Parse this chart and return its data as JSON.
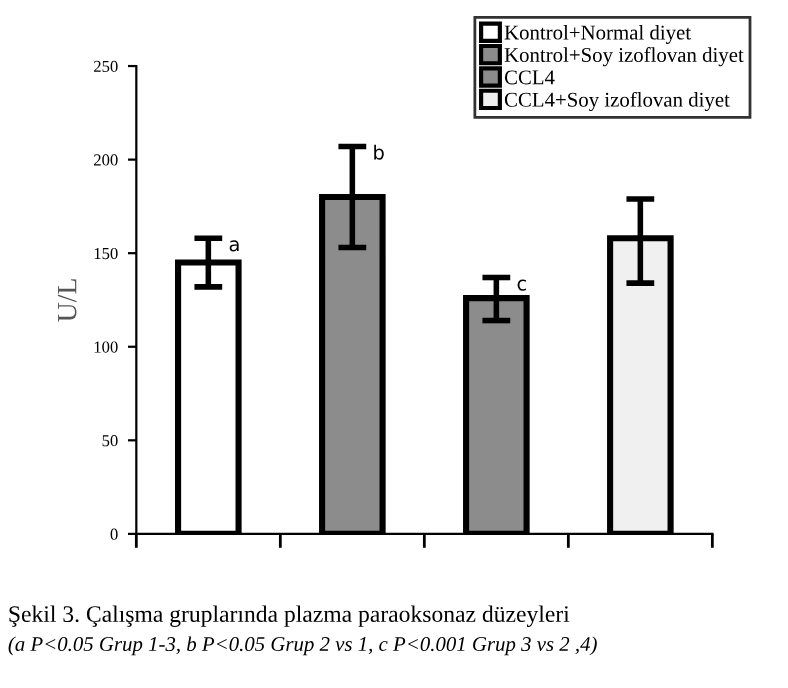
{
  "chart_data": {
    "type": "bar",
    "ylabel": "U/L",
    "categories": [
      null,
      null,
      null,
      null
    ],
    "series": [
      {
        "name": "Kontrol+Normal diyet",
        "color": "#ffffff",
        "values": [
          145,
          null,
          null,
          null
        ],
        "errors": [
          13,
          null,
          null,
          null
        ],
        "value_labels": [
          "a",
          null,
          null,
          null
        ]
      },
      {
        "name": "Kontrol+Soy izoflovan diyet",
        "color": "#8c8c8c",
        "values": [
          null,
          180,
          null,
          null
        ],
        "errors": [
          null,
          [
            153,
            207
          ],
          null,
          null
        ],
        "value_labels": [
          null,
          "b",
          null,
          null
        ]
      },
      {
        "name": "CCL4",
        "color": "#8c8c8c",
        "values": [
          null,
          null,
          126,
          null
        ],
        "errors": [
          null,
          null,
          [
            114,
            137
          ],
          null
        ],
        "value_labels": [
          null,
          null,
          "c",
          null
        ]
      },
      {
        "name": "CCL4+Soy izoflovan diyet",
        "color": "#f0f0f0",
        "values": [
          null,
          null,
          null,
          158
        ],
        "errors": [
          null,
          null,
          null,
          [
            134,
            179
          ]
        ],
        "value_labels": [
          null,
          null,
          null,
          null
        ]
      }
    ],
    "ylim": [
      0,
      250
    ],
    "yticks": [
      0,
      50,
      100,
      150,
      200,
      250
    ],
    "grid": false,
    "legend": "top right",
    "annotations": [
      "Şekil 3. Çalışma gruplarında plazma paraoksonaz düzeyleri",
      "(a P<0.05 Grup 1-3, b P<0.05 Grup 2 vs 1, c P<0.001 Grup 3 vs 2 ,4)"
    ]
  }
}
